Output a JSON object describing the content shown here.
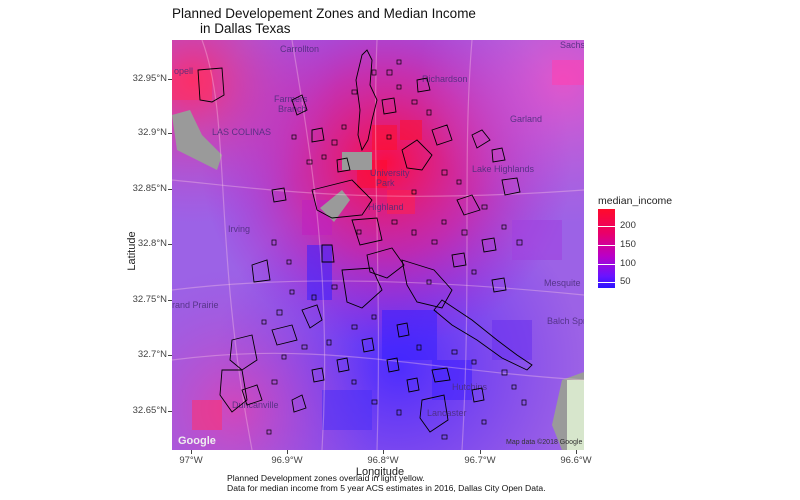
{
  "title": {
    "line1": "Planned Developement Zones and Median Income",
    "line2": "in Dallas Texas"
  },
  "axes": {
    "x_label": "Longitude",
    "y_label": "Latitude",
    "x_ticks": [
      "97°W",
      "96.9°W",
      "96.8°W",
      "96.7°W",
      "96.6°W"
    ],
    "y_ticks": [
      "32.95°N",
      "32.9°N",
      "32.85°N",
      "32.8°N",
      "32.75°N",
      "32.7°N",
      "32.65°N"
    ]
  },
  "legend": {
    "title": "median_income",
    "labels": [
      "200",
      "150",
      "100",
      "50"
    ]
  },
  "caption": {
    "line1": "Planned Development zones overlaid in light yellow.",
    "line2": "Data for median income from 5 year ACS estimates in 2016, Dallas City Open Data."
  },
  "map": {
    "places": [
      "Carrollton",
      "Richardson",
      "Farmers Branch",
      "Garland",
      "Irving",
      "Mesquite",
      "Grand Prairie",
      "Balch Springs",
      "Duncanville",
      "Lancaster",
      "Hutchins",
      "Highland",
      "University Park",
      "Sachse",
      "Copell",
      "LAS COLINAS",
      "Lake Highlands"
    ],
    "attribution": "Map data ©2018 Google",
    "logo": "Google"
  },
  "colors": {
    "low": "#2a14ff",
    "mid": "#b900c8",
    "high": "#ff0b2b",
    "zone_outline": "#000000"
  }
}
